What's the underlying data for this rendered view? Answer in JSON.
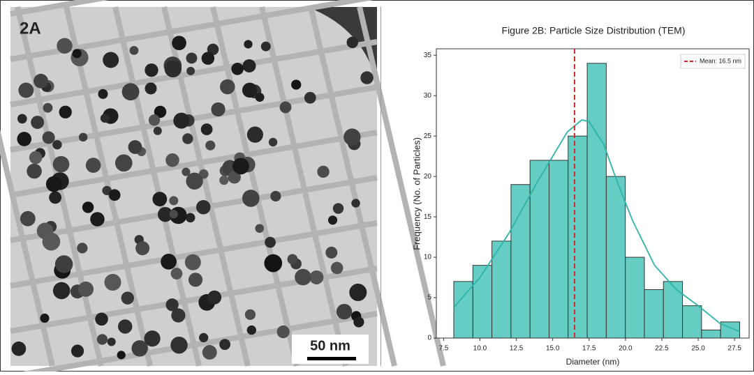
{
  "panel_a": {
    "label": "2A",
    "scale_bar": "50 nm"
  },
  "chart_data": {
    "type": "histogram",
    "title": "Figure 2B: Particle Size Distribution (TEM)",
    "x_label": "Diameter (nm)",
    "y_label": "Frequency (No. of Particles)",
    "bins": [
      8.2,
      9.51,
      10.82,
      12.13,
      13.44,
      14.75,
      16.06,
      17.37,
      18.68,
      19.99,
      21.3,
      22.61,
      23.92,
      25.23,
      26.54,
      27.85
    ],
    "values": [
      7,
      9,
      12,
      19,
      22,
      22,
      25,
      34,
      20,
      10,
      6,
      7,
      4,
      1,
      2
    ],
    "color": "#66cdc4",
    "edge_color": "#333333",
    "kde": {
      "x": [
        8.2,
        10,
        12,
        14,
        15,
        16,
        17,
        17.5,
        18.5,
        19.5,
        20.5,
        22,
        23.5,
        25,
        26.5,
        27.85
      ],
      "values": [
        3.8,
        7.5,
        13,
        19.5,
        22.5,
        25.5,
        27,
        26.8,
        24,
        19,
        14.5,
        9,
        6,
        4,
        1.8,
        0.8
      ],
      "color": "#2ab5a8"
    },
    "mean_line": {
      "value": 16.5,
      "label": "Mean: 16.5 nm",
      "color": "#d62728"
    },
    "legend": "upper right",
    "xlim": [
      7,
      28.5
    ],
    "xticks": [
      7.5,
      {
        "value": 10,
        "label": "10.0"
      },
      12.5,
      {
        "value": 15,
        "label": "15.0"
      },
      17.5,
      {
        "value": 20,
        "label": "20.0"
      },
      22.5,
      {
        "value": 25,
        "label": "25.0"
      },
      27.5
    ],
    "ylim": [
      0,
      35.8
    ],
    "yticks": [
      0,
      5,
      10,
      15,
      20,
      25,
      30,
      35
    ]
  }
}
